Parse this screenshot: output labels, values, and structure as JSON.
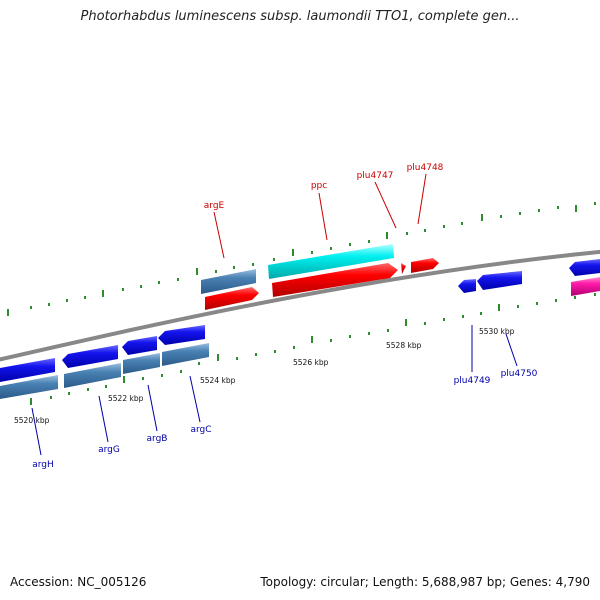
{
  "title": "Photorhabdus luminescens subsp. laumondii TTO1, complete gen...",
  "footer": {
    "accession": "Accession: NC_005126",
    "summary": "Topology: circular; Length: 5,688,987 bp; Genes: 4,790"
  },
  "colors": {
    "backbone": "#888888",
    "tick": "#2e8b2e",
    "label_forward": "#cc0000",
    "label_reverse": "#0000aa"
  },
  "kbp_labels": [
    "5520 kbp",
    "5522 kbp",
    "5524 kbp",
    "5526 kbp",
    "5528 kbp",
    "5530 kbp"
  ],
  "genes": {
    "argE": "argE",
    "ppc": "ppc",
    "plu4747": "plu4747",
    "plu4748": "plu4748",
    "argH": "argH",
    "argG": "argG",
    "argB": "argB",
    "argC": "argC",
    "plu4749": "plu4749",
    "plu4750": "plu4750"
  }
}
